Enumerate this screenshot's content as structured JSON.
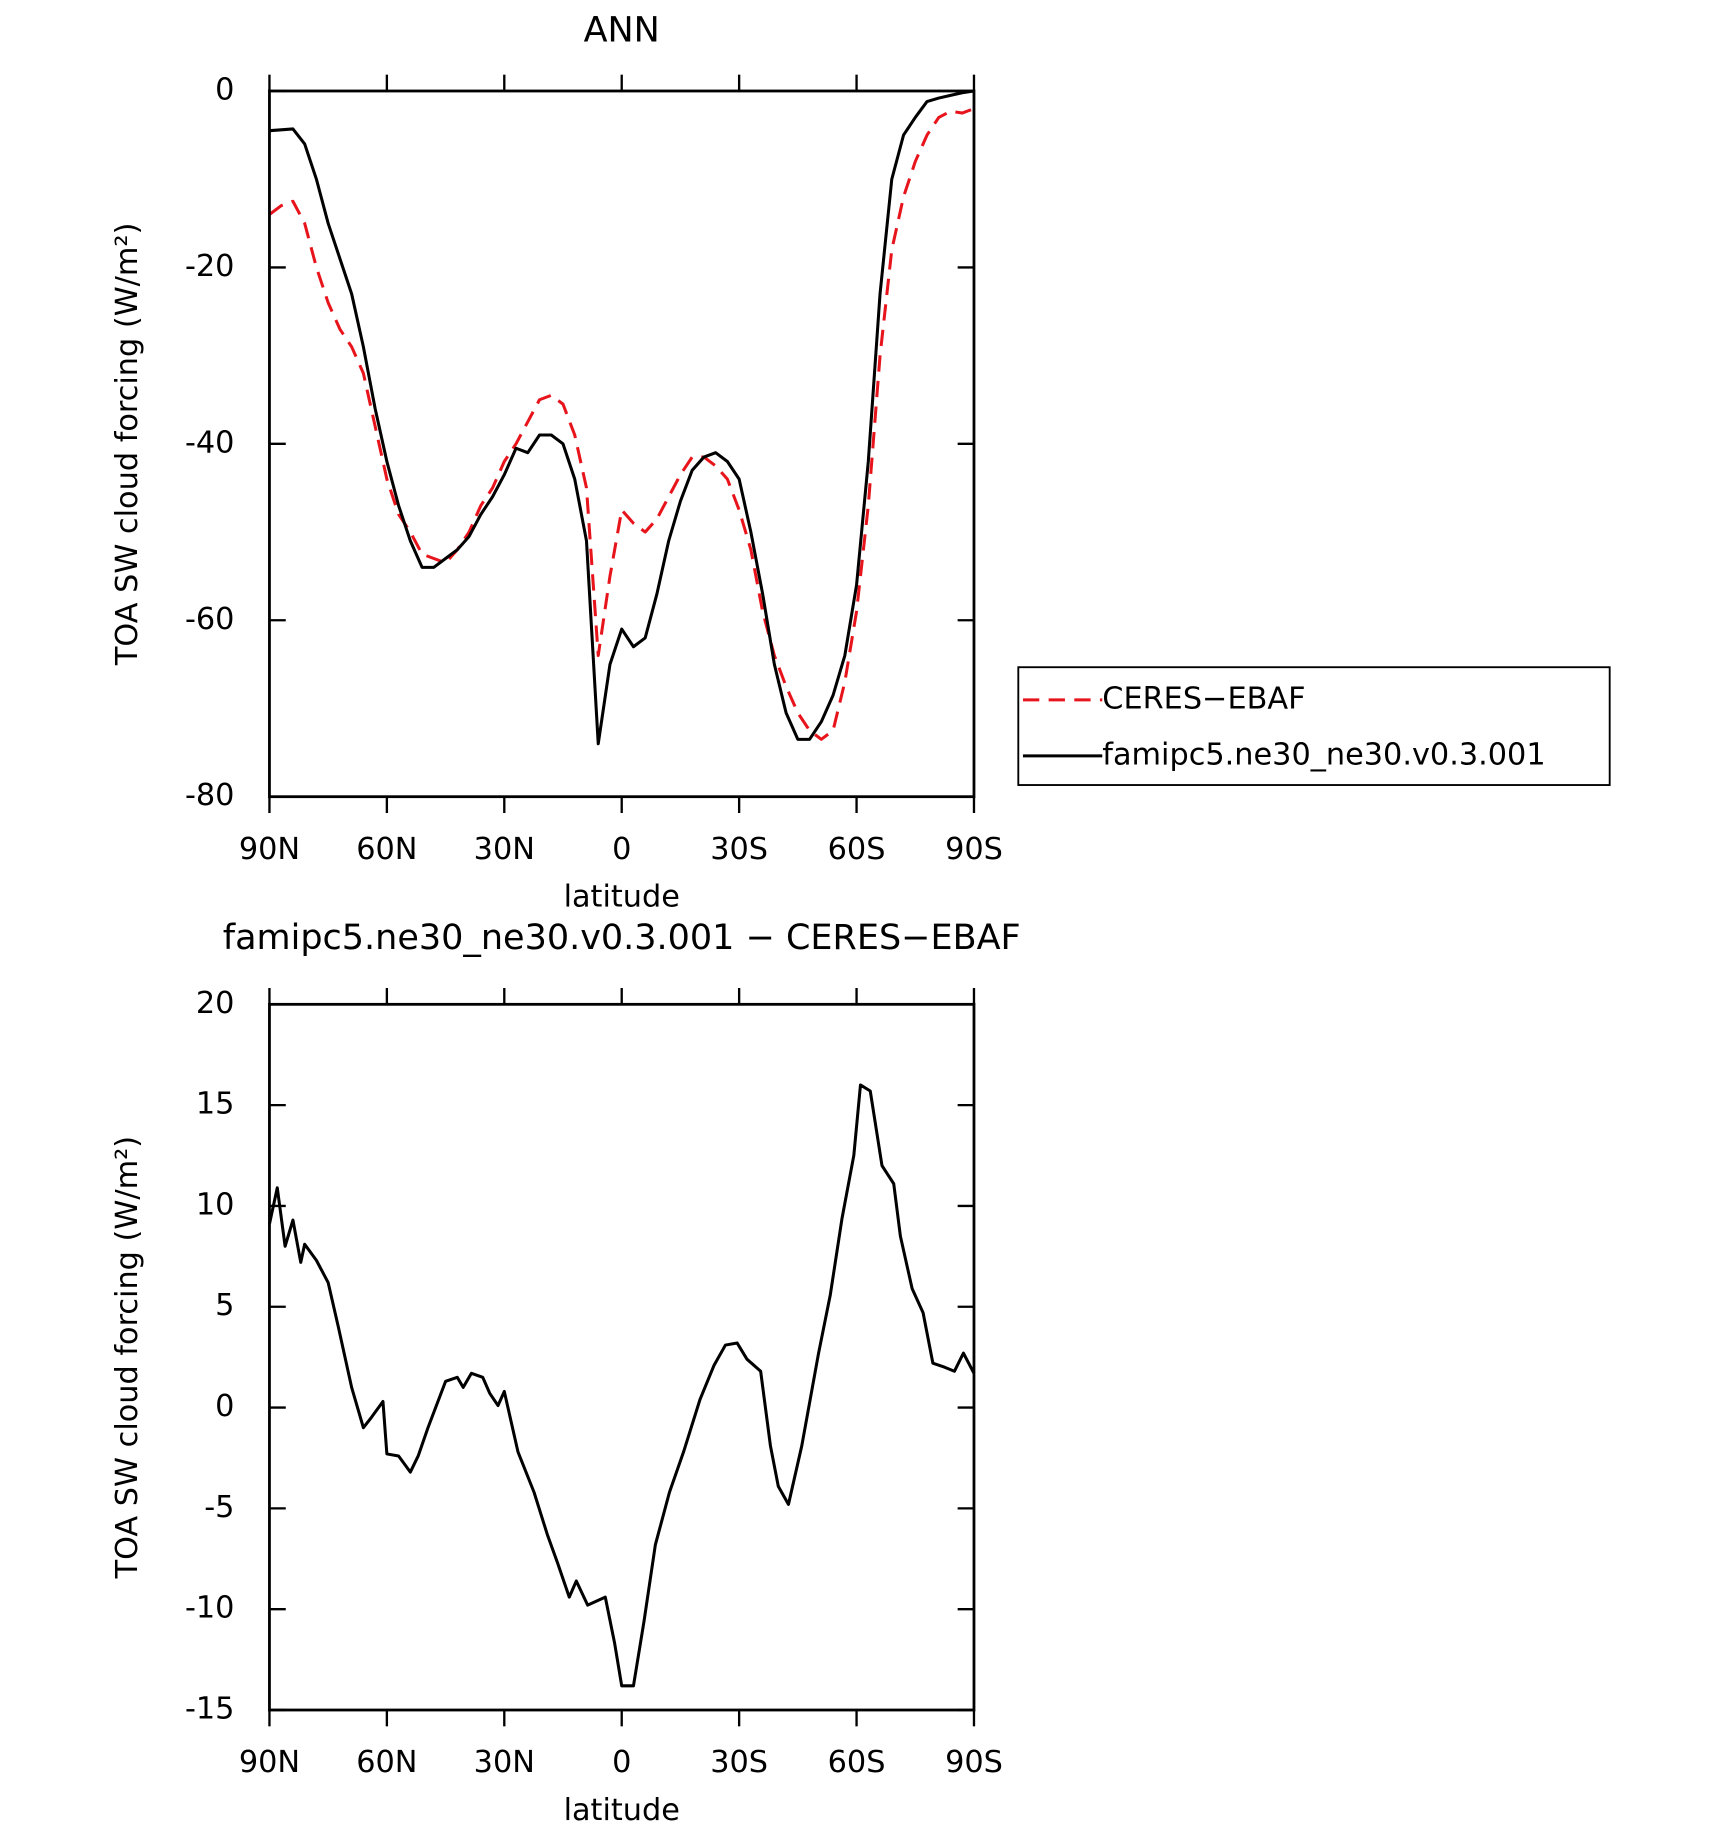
{
  "chart_data": [
    {
      "type": "line",
      "title": "ANN",
      "xlabel": "latitude",
      "ylabel": "TOA SW cloud forcing (W/m²)",
      "x": [
        90,
        87,
        84,
        81,
        78,
        75,
        72,
        69,
        66,
        63,
        60,
        57,
        54,
        51,
        48,
        45,
        42,
        39,
        36,
        33,
        30,
        27,
        24,
        21,
        18,
        15,
        12,
        9,
        6,
        3,
        0,
        -3,
        -6,
        -9,
        -12,
        -15,
        -18,
        -21,
        -24,
        -27,
        -30,
        -33,
        -36,
        -39,
        -42,
        -45,
        -48,
        -51,
        -54,
        -57,
        -60,
        -63,
        -66,
        -69,
        -72,
        -75,
        -78,
        -81,
        -84,
        -87,
        -90
      ],
      "series": [
        {
          "name": "CERES−EBAF",
          "color": "#e8141c",
          "style": "dashed",
          "values": [
            -14,
            -13,
            -12.5,
            -15,
            -20,
            -24,
            -27,
            -29,
            -32,
            -38,
            -44,
            -48,
            -50,
            -52.5,
            -53,
            -53.5,
            -52,
            -50,
            -47,
            -45,
            -42,
            -40,
            -37.5,
            -35,
            -34.5,
            -35.5,
            -39,
            -45,
            -64,
            -55,
            -47.5,
            -49,
            -50,
            -48.5,
            -46,
            -43.5,
            -41.5,
            -41.5,
            -42.5,
            -44,
            -47.5,
            -52,
            -59,
            -64,
            -67.5,
            -70.5,
            -72.5,
            -73.5,
            -72.5,
            -67,
            -59,
            -47,
            -30,
            -18,
            -12,
            -8,
            -5,
            -3,
            -2.3,
            -2.5,
            -2
          ]
        },
        {
          "name": "famipc5.ne30_ne30.v0.3.001",
          "color": "#000000",
          "style": "solid",
          "values": [
            -4.5,
            -4.4,
            -4.3,
            -6,
            -10,
            -15,
            -19,
            -23,
            -29,
            -36,
            -42,
            -47,
            -51,
            -54,
            -54,
            -53,
            -52,
            -50.5,
            -48,
            -46,
            -43.5,
            -40.5,
            -41,
            -39,
            -39,
            -40,
            -44,
            -51,
            -74,
            -65,
            -61,
            -63,
            -62,
            -57,
            -51,
            -46.5,
            -43,
            -41.5,
            -41,
            -42,
            -44,
            -50,
            -57,
            -65,
            -70.5,
            -73.5,
            -73.5,
            -71.5,
            -68.5,
            -64,
            -56,
            -42,
            -23,
            -10,
            -5,
            -3,
            -1.2,
            -0.8,
            -0.5,
            -0.2,
            0
          ]
        }
      ],
      "xlim": [
        90,
        -90
      ],
      "ylim": [
        -80,
        0
      ],
      "xticks": [
        {
          "value": 90,
          "label": "90N"
        },
        {
          "value": 60,
          "label": "60N"
        },
        {
          "value": 30,
          "label": "30N"
        },
        0,
        {
          "value": -30,
          "label": "30S"
        },
        {
          "value": -60,
          "label": "60S"
        },
        {
          "value": -90,
          "label": "90S"
        }
      ],
      "yticks": [
        -80,
        -60,
        -40,
        -20,
        0
      ],
      "legend": "right"
    },
    {
      "type": "line",
      "title": "famipc5.ne30_ne30.v0.3.001 − CERES−EBAF",
      "xlabel": "latitude",
      "ylabel": "TOA SW cloud forcing (W/m²)",
      "x": [
        90,
        88,
        86,
        84,
        82,
        81,
        78,
        75,
        72.4,
        69,
        66,
        64,
        61,
        60,
        57,
        54,
        52,
        49.5,
        45,
        42,
        40.5,
        38.4,
        35.5,
        33.7,
        31.6,
        30,
        26.5,
        22.4,
        19,
        16.4,
        13.4,
        11.6,
        8.7,
        4.2,
        1.8,
        0,
        -3,
        -5.7,
        -8.6,
        -12.2,
        -15.8,
        -20,
        -23.6,
        -26.5,
        -29.5,
        -32,
        -35.5,
        -38,
        -40,
        -42.6,
        -46,
        -50.3,
        -53.3,
        -56.3,
        -59.3,
        -61,
        -63.5,
        -66.5,
        -69.5,
        -71.2,
        -74.2,
        -77,
        -79.5,
        -82.5,
        -85,
        -87.3,
        -90
      ],
      "series": [
        {
          "color": "#000000",
          "style": "solid",
          "values": [
            9.1,
            10.9,
            8,
            9.3,
            7.2,
            8.1,
            7.3,
            6.2,
            4,
            1,
            -1,
            -0.5,
            0.3,
            -2.3,
            -2.4,
            -3.2,
            -2.4,
            -1,
            1.3,
            1.5,
            1,
            1.7,
            1.5,
            0.7,
            0.1,
            0.8,
            -2.2,
            -4.2,
            -6.3,
            -7.7,
            -9.4,
            -8.6,
            -9.8,
            -9.4,
            -11.7,
            -13.8,
            -13.8,
            -10.6,
            -6.8,
            -4.2,
            -2.2,
            0.4,
            2.1,
            3.1,
            3.2,
            2.4,
            1.8,
            -1.9,
            -3.9,
            -4.8,
            -1.9,
            2.7,
            5.6,
            9.4,
            12.5,
            16,
            15.7,
            12,
            11.1,
            8.5,
            5.9,
            4.7,
            2.2,
            2,
            1.8,
            2.7,
            1.7
          ]
        }
      ],
      "xlim": [
        90,
        -90
      ],
      "ylim": [
        -15,
        20
      ],
      "xticks": [
        {
          "value": 90,
          "label": "90N"
        },
        {
          "value": 60,
          "label": "60N"
        },
        {
          "value": 30,
          "label": "30N"
        },
        0,
        {
          "value": -30,
          "label": "30S"
        },
        {
          "value": -60,
          "label": "60S"
        },
        {
          "value": -90,
          "label": "90S"
        }
      ],
      "yticks": [
        -15,
        -10,
        -5,
        0,
        5,
        10,
        15,
        20
      ]
    }
  ]
}
